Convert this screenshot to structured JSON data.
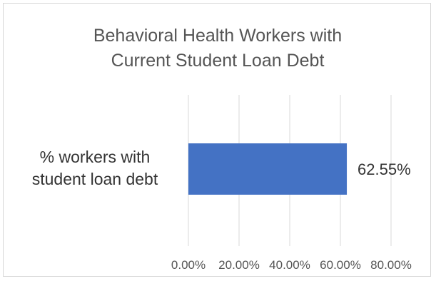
{
  "chart_data": {
    "type": "bar",
    "orientation": "horizontal",
    "title": "Behavioral Health Workers with Current Student Loan Debt",
    "title_lines": [
      "Behavioral Health Workers with",
      "Current Student Loan Debt"
    ],
    "categories": [
      "% workers with student loan debt"
    ],
    "category_lines": [
      "% workers with",
      "student loan debt"
    ],
    "values": [
      62.55
    ],
    "data_labels": [
      "62.55%"
    ],
    "xlim": [
      0,
      80
    ],
    "xticks": [
      0,
      20,
      40,
      60,
      80
    ],
    "xtick_labels": [
      "0.00%",
      "20.00%",
      "40.00%",
      "60.00%",
      "80.00%"
    ],
    "xlabel": "",
    "ylabel": "",
    "grid": "vertical",
    "legend": "none",
    "bar_color": "#4472c4",
    "grid_color": "#d9d9d9"
  }
}
